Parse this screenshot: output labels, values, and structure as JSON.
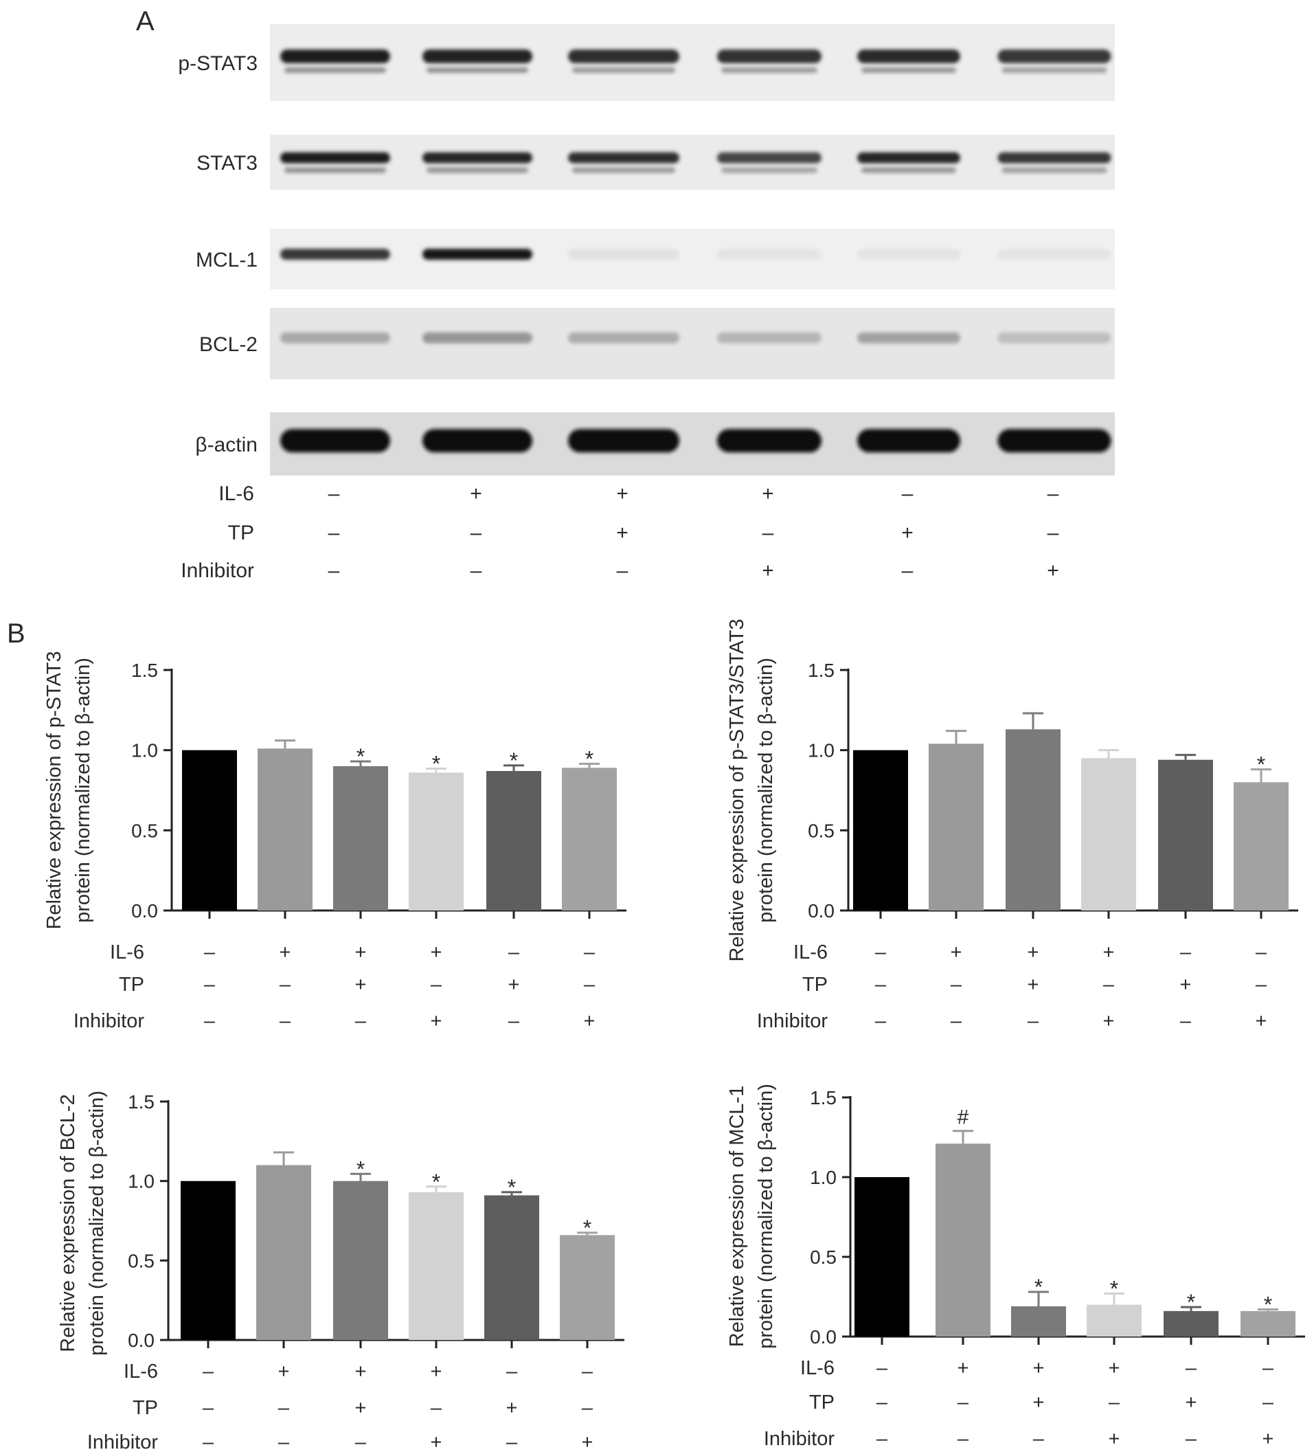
{
  "panel_a": {
    "letter": "A",
    "blot_rows": [
      {
        "label": "p-STAT3",
        "intensities": [
          0.92,
          0.9,
          0.84,
          0.82,
          0.86,
          0.8
        ],
        "doublet": true,
        "brightness": 0.93
      },
      {
        "label": "STAT3",
        "intensities": [
          0.92,
          0.88,
          0.84,
          0.74,
          0.88,
          0.8
        ],
        "doublet": true,
        "brightness": 0.92
      },
      {
        "label": "MCL-1",
        "intensities": [
          0.8,
          0.95,
          0.04,
          0.03,
          0.03,
          0.03
        ],
        "doublet": false,
        "brightness": 0.94
      },
      {
        "label": "BCL-2",
        "intensities": [
          0.3,
          0.38,
          0.28,
          0.24,
          0.33,
          0.2
        ],
        "doublet": false,
        "brightness": 0.9
      },
      {
        "label": "β-actin",
        "intensities": [
          1.0,
          1.0,
          1.0,
          1.0,
          1.0,
          1.0
        ],
        "doublet": false,
        "brightness": 0.86
      }
    ],
    "conditions": [
      {
        "label": "IL-6",
        "signs": [
          "–",
          "+",
          "+",
          "+",
          "–",
          "–"
        ]
      },
      {
        "label": "TP",
        "signs": [
          "–",
          "–",
          "+",
          "–",
          "+",
          "–"
        ]
      },
      {
        "label": "Inhibitor",
        "signs": [
          "–",
          "–",
          "–",
          "+",
          "–",
          "+"
        ]
      }
    ]
  },
  "panel_b": {
    "letter": "B"
  },
  "chart_data": [
    {
      "type": "bar",
      "ylabel_lines": [
        "Relative expression of p-STAT3",
        "protein (normalized to β-actin)"
      ],
      "ylim": [
        0,
        1.5
      ],
      "yticks": [
        "0.0",
        "0.5",
        "1.0",
        "1.5"
      ],
      "values": [
        1.0,
        1.01,
        0.9,
        0.86,
        0.87,
        0.89
      ],
      "errors": [
        0,
        0.05,
        0.03,
        0.025,
        0.035,
        0.025
      ],
      "annotations": [
        "",
        "",
        "*",
        "*",
        "*",
        "*"
      ],
      "bar_colors": [
        "#000000",
        "#9a9a9a",
        "#7a7a7a",
        "#d2d2d2",
        "#5e5e5e",
        "#a2a2a2"
      ],
      "conditions": [
        {
          "label": "IL-6",
          "signs": [
            "–",
            "+",
            "+",
            "+",
            "–",
            "–"
          ]
        },
        {
          "label": "TP",
          "signs": [
            "–",
            "–",
            "+",
            "–",
            "+",
            "–"
          ]
        },
        {
          "label": "Inhibitor",
          "signs": [
            "–",
            "–",
            "–",
            "+",
            "–",
            "+"
          ]
        }
      ]
    },
    {
      "type": "bar",
      "ylabel_lines": [
        "Relative expression of p-STAT3/STAT3",
        "protein (normalized to β-actin)"
      ],
      "ylim": [
        0,
        1.5
      ],
      "yticks": [
        "0.0",
        "0.5",
        "1.0",
        "1.5"
      ],
      "values": [
        1.0,
        1.04,
        1.13,
        0.95,
        0.94,
        0.8
      ],
      "errors": [
        0,
        0.08,
        0.1,
        0.05,
        0.03,
        0.08
      ],
      "annotations": [
        "",
        "",
        "",
        "",
        "",
        "*"
      ],
      "bar_colors": [
        "#000000",
        "#9a9a9a",
        "#7a7a7a",
        "#d2d2d2",
        "#5e5e5e",
        "#a2a2a2"
      ],
      "conditions": [
        {
          "label": "IL-6",
          "signs": [
            "–",
            "+",
            "+",
            "+",
            "–",
            "–"
          ]
        },
        {
          "label": "TP",
          "signs": [
            "–",
            "–",
            "+",
            "–",
            "+",
            "–"
          ]
        },
        {
          "label": "Inhibitor",
          "signs": [
            "–",
            "–",
            "–",
            "+",
            "–",
            "+"
          ]
        }
      ]
    },
    {
      "type": "bar",
      "ylabel_lines": [
        "Relative expression of BCL-2",
        "protein (normalized to β-actin)"
      ],
      "ylim": [
        0,
        1.5
      ],
      "yticks": [
        "0.0",
        "0.5",
        "1.0",
        "1.5"
      ],
      "values": [
        1.0,
        1.1,
        1.0,
        0.93,
        0.91,
        0.66
      ],
      "errors": [
        0,
        0.08,
        0.045,
        0.035,
        0.02,
        0.015
      ],
      "annotations": [
        "",
        "",
        "*",
        "*",
        "*",
        "*"
      ],
      "bar_colors": [
        "#000000",
        "#9a9a9a",
        "#7a7a7a",
        "#d2d2d2",
        "#5e5e5e",
        "#a2a2a2"
      ],
      "conditions": [
        {
          "label": "IL-6",
          "signs": [
            "–",
            "+",
            "+",
            "+",
            "–",
            "–"
          ]
        },
        {
          "label": "TP",
          "signs": [
            "–",
            "–",
            "+",
            "–",
            "+",
            "–"
          ]
        },
        {
          "label": "Inhibitor",
          "signs": [
            "–",
            "–",
            "–",
            "+",
            "–",
            "+"
          ]
        }
      ]
    },
    {
      "type": "bar",
      "ylabel_lines": [
        "Relative expression of MCL-1",
        "protein (normalized to β-actin)"
      ],
      "ylim": [
        0,
        1.5
      ],
      "yticks": [
        "0.0",
        "0.5",
        "1.0",
        "1.5"
      ],
      "values": [
        1.0,
        1.21,
        0.19,
        0.2,
        0.16,
        0.16
      ],
      "errors": [
        0,
        0.08,
        0.09,
        0.07,
        0.025,
        0.01
      ],
      "annotations": [
        "",
        "#",
        "*",
        "*",
        "*",
        "*"
      ],
      "bar_colors": [
        "#000000",
        "#9a9a9a",
        "#7a7a7a",
        "#d2d2d2",
        "#5e5e5e",
        "#a2a2a2"
      ],
      "conditions": [
        {
          "label": "IL-6",
          "signs": [
            "–",
            "+",
            "+",
            "+",
            "–",
            "–"
          ]
        },
        {
          "label": "TP",
          "signs": [
            "–",
            "–",
            "+",
            "–",
            "+",
            "–"
          ]
        },
        {
          "label": "Inhibitor",
          "signs": [
            "–",
            "–",
            "–",
            "+",
            "–",
            "+"
          ]
        }
      ]
    }
  ]
}
